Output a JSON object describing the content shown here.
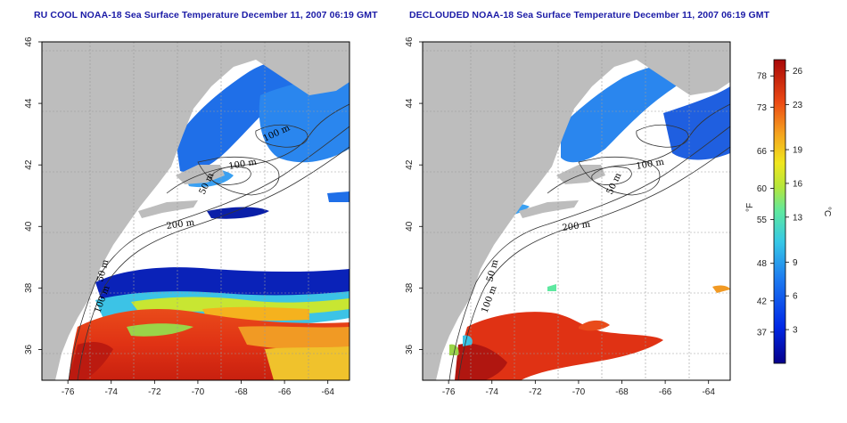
{
  "panels": [
    {
      "id": "left",
      "title": "RU COOL NOAA-18 Sea Surface Temperature December 11, 2007 06:19 GMT",
      "contour_labels": [
        "100 m",
        "100 m",
        "50 m",
        "200 m",
        "50 m",
        "100 m"
      ]
    },
    {
      "id": "right",
      "title": "DECLOUDED NOAA-18 Sea Surface Temperature December 11, 2007 06:19 GMT",
      "contour_labels": [
        "100 m",
        "50 m",
        "200 m",
        "50 m",
        "100 m"
      ]
    }
  ],
  "axes": {
    "lon_ticks": [
      "-76",
      "-74",
      "-72",
      "-70",
      "-68",
      "-66",
      "-64"
    ],
    "lat_ticks": [
      "46",
      "44",
      "42",
      "40",
      "38",
      "36"
    ],
    "lon_range": [
      -77.2,
      -63.0
    ],
    "lat_range": [
      35.0,
      46.0
    ],
    "grid": "dotted"
  },
  "colorbar": {
    "f_label": "°F",
    "c_label": "°C",
    "f_ticks": [
      "78",
      "73",
      "66",
      "60",
      "55",
      "48",
      "42",
      "37"
    ],
    "c_ticks": [
      "26",
      "23",
      "19",
      "16",
      "13",
      "9",
      "6",
      "3"
    ],
    "c_range": [
      0,
      27
    ]
  },
  "colors": {
    "land": "#bdbdbd",
    "cloud": "#ffffff",
    "title": "#1a1aa6"
  }
}
